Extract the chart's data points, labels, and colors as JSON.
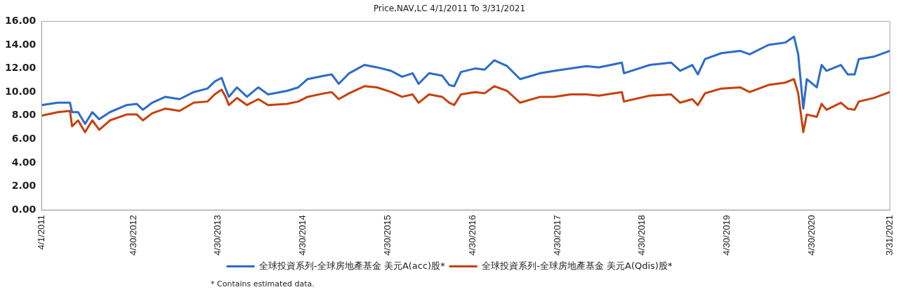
{
  "chart_data": {
    "type": "line",
    "title": "Price,NAV,LC 4/1/2011 To 3/31/2021",
    "x": [
      "2011-04-01",
      "2011-06-10",
      "2011-08-01",
      "2011-08-10",
      "2011-09-05",
      "2011-10-05",
      "2011-11-05",
      "2011-12-05",
      "2012-01-20",
      "2012-04-01",
      "2012-05-15",
      "2012-06-10",
      "2012-07-20",
      "2012-09-15",
      "2012-11-15",
      "2013-01-15",
      "2013-03-15",
      "2013-04-15",
      "2013-05-15",
      "2013-06-01",
      "2013-06-15",
      "2013-07-20",
      "2013-09-01",
      "2013-10-20",
      "2013-12-01",
      "2014-02-20",
      "2014-04-10",
      "2014-05-20",
      "2014-08-01",
      "2014-09-01",
      "2014-10-01",
      "2014-11-15",
      "2015-01-20",
      "2015-03-15",
      "2015-05-15",
      "2015-07-01",
      "2015-08-15",
      "2015-09-10",
      "2015-10-25",
      "2015-12-20",
      "2016-01-20",
      "2016-02-10",
      "2016-03-10",
      "2016-05-10",
      "2016-06-20",
      "2016-08-01",
      "2016-09-25",
      "2016-11-20",
      "2017-02-15",
      "2017-04-15",
      "2017-06-25",
      "2017-09-01",
      "2017-10-25",
      "2018-02-01",
      "2018-02-10",
      "2018-06-01",
      "2018-09-01",
      "2018-10-10",
      "2018-12-01",
      "2018-12-25",
      "2019-01-25",
      "2019-04-05",
      "2019-06-25",
      "2019-08-05",
      "2019-10-25",
      "2020-01-05",
      "2020-02-12",
      "2020-03-01",
      "2020-03-23",
      "2020-04-07",
      "2020-05-20",
      "2020-06-10",
      "2020-07-01",
      "2020-09-01",
      "2020-09-30",
      "2020-10-30",
      "2020-11-17",
      "2021-01-20",
      "2021-03-31"
    ],
    "series": [
      {
        "name": "全球投資系列-全球房地產基金 美元A(acc)股*",
        "color": "#2c6cc8",
        "values": [
          8.9,
          9.1,
          9.1,
          8.3,
          8.3,
          7.3,
          8.3,
          7.7,
          8.3,
          8.9,
          9.0,
          8.5,
          9.1,
          9.6,
          9.4,
          10.0,
          10.3,
          10.9,
          11.2,
          10.3,
          9.6,
          10.4,
          9.6,
          10.4,
          9.8,
          10.1,
          10.4,
          11.1,
          11.4,
          11.5,
          10.7,
          11.6,
          12.3,
          12.1,
          11.8,
          11.3,
          11.6,
          10.7,
          11.6,
          11.4,
          10.6,
          10.5,
          11.7,
          12.0,
          11.9,
          12.7,
          12.2,
          11.1,
          11.6,
          11.8,
          12.0,
          12.2,
          12.1,
          12.5,
          11.6,
          12.3,
          12.5,
          11.8,
          12.3,
          11.5,
          12.8,
          13.3,
          13.5,
          13.2,
          14.0,
          14.2,
          14.7,
          13.2,
          8.6,
          11.1,
          10.4,
          12.3,
          11.8,
          12.3,
          11.5,
          11.5,
          12.8,
          13.0,
          13.5
        ]
      },
      {
        "name": "全球投資系列-全球房地產基金 美元A(Qdis)股*",
        "color": "#c8400c",
        "values": [
          8.0,
          8.3,
          8.4,
          7.1,
          7.6,
          6.6,
          7.6,
          6.8,
          7.6,
          8.1,
          8.1,
          7.6,
          8.2,
          8.6,
          8.4,
          9.1,
          9.2,
          9.8,
          10.2,
          9.6,
          8.9,
          9.5,
          8.9,
          9.4,
          8.9,
          9.0,
          9.2,
          9.6,
          9.9,
          10.0,
          9.4,
          9.9,
          10.5,
          10.4,
          10.0,
          9.6,
          9.8,
          9.1,
          9.8,
          9.6,
          9.1,
          8.9,
          9.8,
          10.0,
          9.9,
          10.5,
          10.1,
          9.1,
          9.6,
          9.6,
          9.8,
          9.8,
          9.7,
          10.0,
          9.2,
          9.7,
          9.8,
          9.1,
          9.4,
          8.9,
          9.9,
          10.3,
          10.4,
          10.0,
          10.6,
          10.8,
          11.1,
          9.9,
          6.6,
          8.1,
          7.9,
          9.0,
          8.5,
          9.1,
          8.6,
          8.5,
          9.2,
          9.5,
          10.0
        ]
      }
    ],
    "xlim": [
      "2011-04-01",
      "2021-03-31"
    ],
    "xticks": [
      {
        "value": "2011-04-01",
        "label": "4/1/2011"
      },
      {
        "value": "2012-04-30",
        "label": "4/30/2012"
      },
      {
        "value": "2013-04-30",
        "label": "4/30/2013"
      },
      {
        "value": "2014-04-30",
        "label": "4/30/2014"
      },
      {
        "value": "2015-04-30",
        "label": "4/30/2015"
      },
      {
        "value": "2016-04-30",
        "label": "4/30/2016"
      },
      {
        "value": "2017-04-30",
        "label": "4/30/2017"
      },
      {
        "value": "2018-04-30",
        "label": "4/30/2018"
      },
      {
        "value": "2019-04-30",
        "label": "4/30/2019"
      },
      {
        "value": "2020-04-30",
        "label": "4/30/2020"
      },
      {
        "value": "2021-03-31",
        "label": "3/31/2021"
      }
    ],
    "ylim": [
      0,
      16
    ],
    "yticks": [
      {
        "value": 0,
        "label": "0.00"
      },
      {
        "value": 2,
        "label": "2.00"
      },
      {
        "value": 4,
        "label": "4.00"
      },
      {
        "value": 6,
        "label": "6.00"
      },
      {
        "value": 8,
        "label": "8.00"
      },
      {
        "value": 10,
        "label": "10.00"
      },
      {
        "value": 12,
        "label": "12.00"
      },
      {
        "value": 14,
        "label": "14.00"
      },
      {
        "value": 16,
        "label": "16.00"
      }
    ],
    "grid": false,
    "legend": "bottom",
    "marker": "none",
    "line_style": "solid",
    "annotations": [
      "*  Contains estimated data."
    ]
  }
}
